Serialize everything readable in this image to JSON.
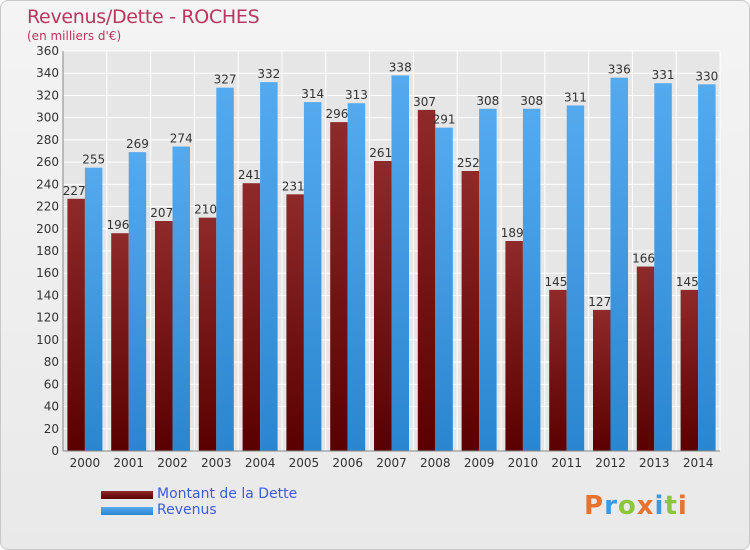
{
  "title": "Revenus/Dette - ROCHES",
  "subtitle": "(en milliers d'€)",
  "logo": "Proxiti",
  "colors": {
    "dette": "#7a1a1a",
    "revenus": "#3d9ae2",
    "title": "#b8365f",
    "legend_text": "#3e5cd6"
  },
  "chart_data": {
    "type": "bar",
    "title": "Revenus/Dette - ROCHES",
    "subtitle": "(en milliers d'€)",
    "categories": [
      "2000",
      "2001",
      "2002",
      "2003",
      "2004",
      "2005",
      "2006",
      "2007",
      "2008",
      "2009",
      "2010",
      "2011",
      "2012",
      "2013",
      "2014"
    ],
    "series": [
      {
        "name": "Montant de la Dette",
        "values": [
          227,
          196,
          207,
          210,
          241,
          231,
          296,
          261,
          307,
          252,
          189,
          145,
          127,
          166,
          145
        ]
      },
      {
        "name": "Revenus",
        "values": [
          255,
          269,
          274,
          327,
          332,
          314,
          313,
          338,
          291,
          308,
          308,
          311,
          336,
          331,
          330
        ]
      }
    ],
    "ylim": [
      0,
      360
    ],
    "yticks": [
      0,
      20,
      40,
      60,
      80,
      100,
      120,
      140,
      160,
      180,
      200,
      220,
      240,
      260,
      280,
      300,
      320,
      340,
      360
    ],
    "grid": true,
    "legend_position": "bottom-left"
  }
}
